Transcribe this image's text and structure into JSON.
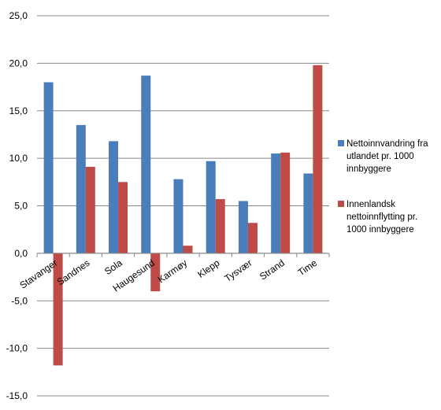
{
  "chart_data": {
    "type": "bar",
    "categories": [
      "Stavanger",
      "Sandnes",
      "Sola",
      "Haugesund",
      "Karmøy",
      "Klepp",
      "Tysvær",
      "Strand",
      "Time"
    ],
    "series": [
      {
        "name": "Nettoinnvandring fra utlandet pr. 1000 innbyggere",
        "legend_lines": [
          "Nettoinnvandring fra",
          "utlandet pr. 1000",
          "innbyggere"
        ],
        "color": "#4a7ebb",
        "values": [
          18.0,
          13.5,
          11.8,
          18.7,
          7.8,
          9.7,
          5.5,
          10.5,
          8.4
        ]
      },
      {
        "name": "Innenlandsk nettoinnflytting pr. 1000 innbyggere",
        "legend_lines": [
          "Innenlandsk",
          "nettoinnflytting pr.",
          "1000 innbyggere"
        ],
        "color": "#be4b48",
        "values": [
          -11.8,
          9.1,
          7.5,
          -4.0,
          0.8,
          5.7,
          3.2,
          10.6,
          19.8
        ]
      }
    ],
    "y_ticks": [
      "25,0",
      "20,0",
      "15,0",
      "10,0",
      "5,0",
      "0,0",
      "-5,0",
      "-10,0",
      "-15,0"
    ],
    "ylim": [
      -15,
      25
    ],
    "ytick_step": 5,
    "grid": "horizontal",
    "legend_position": "right",
    "title": "",
    "xlabel": "",
    "ylabel": ""
  }
}
